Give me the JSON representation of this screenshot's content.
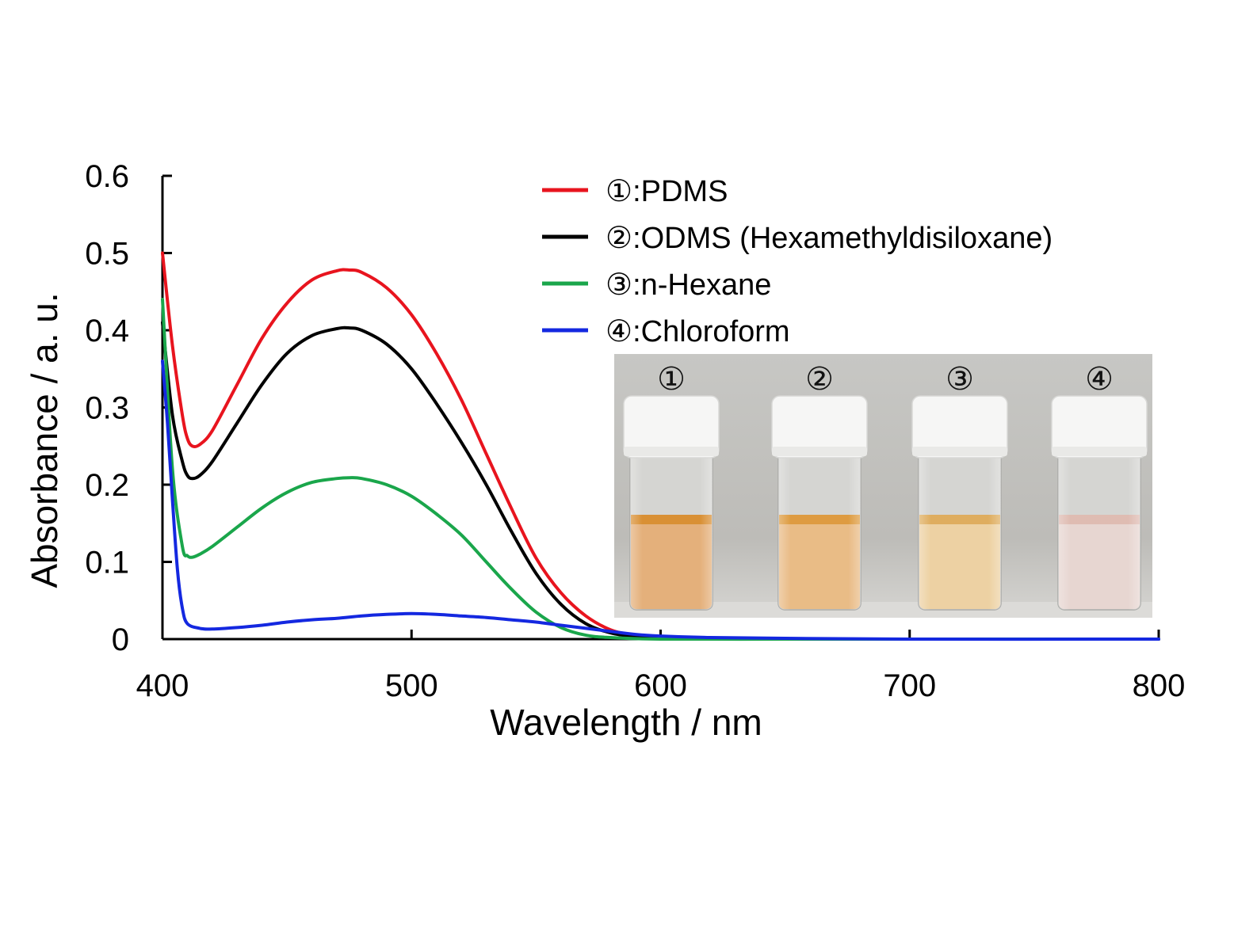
{
  "chart_data": {
    "type": "line",
    "title": "",
    "xlabel": "Wavelength / nm",
    "ylabel": "Absorbance / a. u.",
    "xlim": [
      400,
      800
    ],
    "ylim": [
      0,
      0.6
    ],
    "xticks": [
      "400",
      "500",
      "600",
      "700",
      "800"
    ],
    "yticks": [
      "0",
      "0.1",
      "0.2",
      "0.3",
      "0.4",
      "0.5",
      "0.6"
    ],
    "grid": false,
    "legend_position": "top-right",
    "series": [
      {
        "name": "①:PDMS",
        "color": "#e8141e",
        "x": [
          400,
          404,
          408,
          410,
          412,
          415,
          420,
          430,
          440,
          450,
          460,
          470,
          475,
          480,
          490,
          500,
          510,
          520,
          530,
          540,
          550,
          560,
          570,
          580,
          590,
          600,
          620,
          650,
          700,
          800
        ],
        "y": [
          0.5,
          0.38,
          0.29,
          0.26,
          0.25,
          0.252,
          0.27,
          0.33,
          0.39,
          0.435,
          0.465,
          0.477,
          0.478,
          0.475,
          0.455,
          0.42,
          0.37,
          0.31,
          0.24,
          0.17,
          0.105,
          0.06,
          0.03,
          0.012,
          0.005,
          0.002,
          0.0005,
          0,
          0,
          0
        ]
      },
      {
        "name": "②:ODMS (Hexamethyldisiloxane)",
        "color": "#000000",
        "x": [
          400,
          404,
          408,
          410,
          412,
          415,
          420,
          430,
          440,
          450,
          460,
          470,
          475,
          480,
          490,
          500,
          510,
          520,
          530,
          540,
          550,
          560,
          570,
          580,
          590,
          600,
          620,
          650,
          700,
          800
        ],
        "y": [
          0.41,
          0.29,
          0.23,
          0.212,
          0.208,
          0.212,
          0.23,
          0.28,
          0.33,
          0.37,
          0.393,
          0.402,
          0.403,
          0.4,
          0.382,
          0.35,
          0.305,
          0.255,
          0.2,
          0.14,
          0.085,
          0.045,
          0.02,
          0.008,
          0.003,
          0.001,
          0,
          0,
          0,
          0
        ]
      },
      {
        "name": "③:n-Hexane",
        "color": "#1aa64b",
        "x": [
          400,
          404,
          408,
          410,
          412,
          415,
          420,
          430,
          440,
          450,
          460,
          470,
          475,
          480,
          490,
          500,
          510,
          520,
          530,
          540,
          550,
          560,
          570,
          580,
          600,
          650,
          700,
          800
        ],
        "y": [
          0.44,
          0.22,
          0.12,
          0.108,
          0.106,
          0.11,
          0.12,
          0.145,
          0.17,
          0.19,
          0.203,
          0.208,
          0.209,
          0.208,
          0.2,
          0.185,
          0.162,
          0.135,
          0.1,
          0.065,
          0.035,
          0.015,
          0.005,
          0.002,
          0,
          0,
          0,
          0
        ]
      },
      {
        "name": "④:Chloroform",
        "color": "#1428e0",
        "x": [
          400,
          402,
          404,
          406,
          408,
          410,
          415,
          420,
          430,
          440,
          450,
          460,
          470,
          480,
          490,
          500,
          510,
          520,
          530,
          540,
          550,
          560,
          570,
          580,
          590,
          600,
          620,
          650,
          700,
          800
        ],
        "y": [
          0.36,
          0.28,
          0.18,
          0.09,
          0.04,
          0.02,
          0.014,
          0.013,
          0.015,
          0.018,
          0.022,
          0.025,
          0.027,
          0.03,
          0.032,
          0.033,
          0.032,
          0.03,
          0.028,
          0.025,
          0.022,
          0.018,
          0.014,
          0.01,
          0.006,
          0.004,
          0.002,
          0.001,
          0,
          0
        ]
      }
    ]
  },
  "inset_photo": {
    "vial_labels": [
      "①",
      "②",
      "③",
      "④"
    ],
    "liquid_colors": [
      "#e3ac74",
      "#e8b880",
      "#eccf9e",
      "#e6d4cf"
    ],
    "meniscus_colors": [
      "#d78a2a",
      "#dc9637",
      "#dda957",
      "#ddb8ae"
    ]
  }
}
